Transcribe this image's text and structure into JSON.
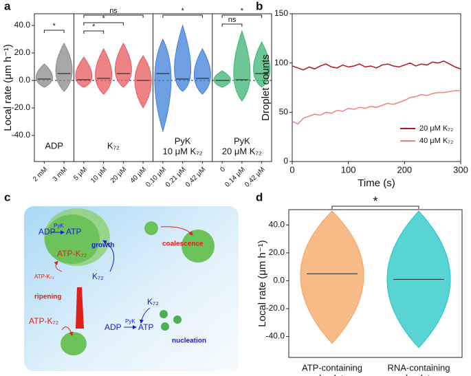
{
  "panel_labels": [
    "a",
    "b",
    "c",
    "d"
  ],
  "chart_data": [
    {
      "type": "violin",
      "ylabel": "Local rate (μm h⁻¹)",
      "ylim": [
        -59,
        48.5
      ],
      "yticks": [
        {
          "value": -40,
          "label": "-40.0"
        },
        {
          "value": -20,
          "label": "-20.0"
        },
        {
          "value": 0,
          "label": "0.0"
        },
        {
          "value": 20,
          "label": "20.0"
        },
        {
          "value": 40,
          "label": "40.0"
        }
      ],
      "series": [
        {
          "name": [
            "ADP"
          ],
          "color": "#8a8a8a",
          "categories": [
            "2 mM",
            "3 mM"
          ],
          "values": [
            1,
            5
          ],
          "mins": [
            -5,
            -8
          ],
          "maxs": [
            12,
            27
          ]
        },
        {
          "name": [
            "K₇₂"
          ],
          "color": "#e8595e",
          "categories": [
            "5 μM",
            "10 μM",
            "20 μM",
            "40 μM"
          ],
          "values": [
            0.5,
            1.5,
            5,
            0
          ],
          "mins": [
            -5,
            -10,
            -5,
            -20
          ],
          "maxs": [
            17,
            23,
            27,
            18
          ]
        },
        {
          "name": [
            "PyK",
            "10 μM K₇₂"
          ],
          "color": "#3f7fd9",
          "categories": [
            "0.10 μM",
            "0.21 μM",
            "0.42 μM"
          ],
          "values": [
            5,
            1,
            1.5
          ],
          "mins": [
            -37,
            -8,
            -10
          ],
          "maxs": [
            30,
            40,
            23
          ]
        },
        {
          "name": [
            "PyK",
            "20 μM K₇₂"
          ],
          "color": "#3cb371",
          "categories": [
            "0",
            "0.14 μM",
            "0.42 μM"
          ],
          "values": [
            0,
            0.5,
            5
          ],
          "mins": [
            -5,
            -15,
            -5
          ],
          "maxs": [
            7,
            36,
            28
          ]
        }
      ],
      "annotations": [
        "*",
        "ns",
        "*",
        "*",
        "*",
        "*",
        "ns"
      ]
    },
    {
      "type": "line",
      "ylabel": "Droplet counts",
      "xlabel": "Time (s)",
      "xlim": [
        0,
        300
      ],
      "xticks": [
        0,
        100,
        200,
        300
      ],
      "ylim": [
        0,
        150
      ],
      "yticks": [
        0,
        50,
        100,
        150
      ],
      "x": [
        0,
        10,
        20,
        30,
        40,
        50,
        60,
        70,
        80,
        90,
        100,
        110,
        120,
        130,
        140,
        150,
        160,
        170,
        180,
        190,
        200,
        210,
        220,
        230,
        240,
        250,
        260,
        270,
        280,
        290,
        300
      ],
      "series": [
        {
          "name": "20 μM K₇₂",
          "color": "#b0141a",
          "values": [
            97,
            95,
            93,
            96,
            94,
            97,
            99,
            96,
            95,
            98,
            96,
            97,
            99,
            96,
            97,
            95,
            98,
            99,
            97,
            96,
            98,
            100,
            97,
            99,
            98,
            101,
            100,
            102,
            99,
            96,
            94
          ]
        },
        {
          "name": "40 μM K₇₂",
          "color": "#f08080",
          "values": [
            41,
            38,
            44,
            46,
            48,
            47,
            50,
            49,
            52,
            51,
            54,
            53,
            55,
            54,
            56,
            55,
            57,
            59,
            58,
            60,
            62,
            65,
            66,
            68,
            67,
            69,
            70,
            70,
            71,
            72,
            72
          ]
        }
      ],
      "legend": "lower right"
    },
    {
      "type": "violin",
      "ylabel": "Local rate (μm h⁻¹)",
      "ylim": [
        -55,
        51
      ],
      "yticks": [
        {
          "value": -40,
          "label": "-40.0"
        },
        {
          "value": -20,
          "label": "-20.0"
        },
        {
          "value": 0,
          "label": "0.0"
        },
        {
          "value": 20,
          "label": "20.0"
        },
        {
          "value": 40,
          "label": "40.0"
        }
      ],
      "series": [
        {
          "name": [
            "ATP-containing",
            "droplets"
          ],
          "color": "#f4a460",
          "categories": [
            ""
          ],
          "values": [
            5
          ],
          "mins": [
            -45
          ],
          "maxs": [
            50
          ]
        },
        {
          "name": [
            "RNA-containing",
            "droplets"
          ],
          "color": "#20c5c5",
          "categories": [
            ""
          ],
          "values": [
            1
          ],
          "mins": [
            -48
          ],
          "maxs": [
            50
          ]
        }
      ],
      "annotations": [
        "*"
      ]
    }
  ],
  "diagram": {
    "labels": [
      "ADP",
      "PyK",
      "ATP",
      "growth",
      "ATP-K₇₂",
      "ATP-K₇₂",
      "K₇₂",
      "coalescence",
      "ripening",
      "ATP-K₇₂",
      "K₇₂",
      "ADP",
      "PyK",
      "ATP",
      "nucleation"
    ]
  }
}
